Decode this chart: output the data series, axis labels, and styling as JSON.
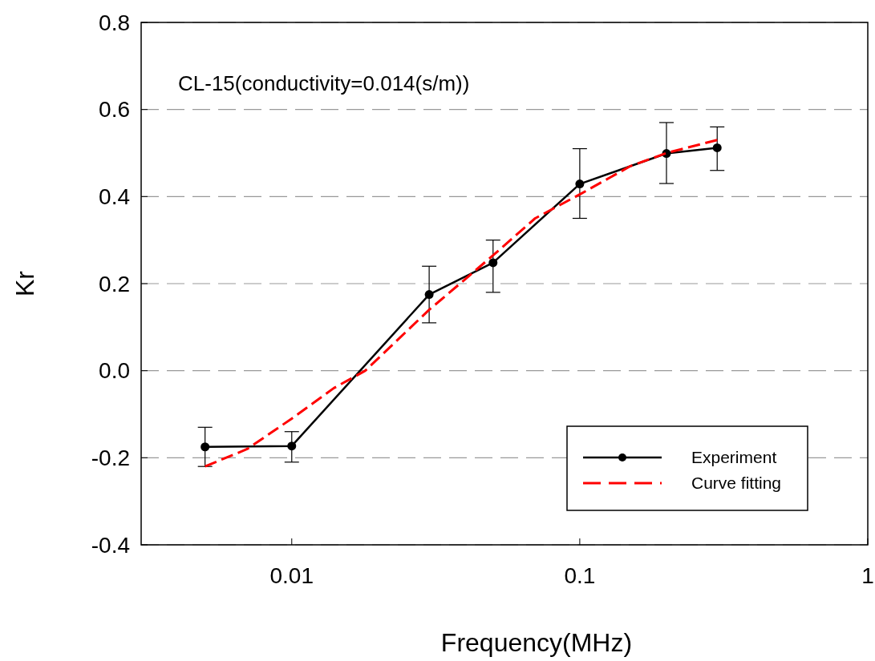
{
  "chart_data": {
    "type": "line",
    "xlabel": "Frequency(MHz)",
    "ylabel": "Kr",
    "annotations": [
      "CL-15(conductivity=0.014(s/m))"
    ],
    "log": "x",
    "xlim": [
      0.003,
      1
    ],
    "xticks": [
      0.01,
      0.1,
      1
    ],
    "ylim": [
      -0.4,
      0.8
    ],
    "yticks": [
      {
        "value": -0.4,
        "label": "-0.4"
      },
      {
        "value": -0.2,
        "label": "-0.2"
      },
      {
        "value": 0,
        "label": "0.0"
      },
      {
        "value": 0.2,
        "label": "0.2"
      },
      {
        "value": 0.4,
        "label": "0.4"
      },
      {
        "value": 0.6,
        "label": "0.6"
      },
      {
        "value": 0.8,
        "label": "0.8"
      }
    ],
    "grid": "y",
    "legend": "bottom right",
    "series": [
      {
        "name": "Experiment",
        "color": "#000000",
        "marker": "circle",
        "line_style": "solid",
        "x": [
          0.005,
          0.01,
          0.03,
          0.05,
          0.1,
          0.2,
          0.3
        ],
        "values": [
          -0.175,
          -0.173,
          0.175,
          0.248,
          0.429,
          0.499,
          0.512
        ],
        "errors": [
          [
            -0.22,
            -0.13
          ],
          [
            -0.21,
            -0.14
          ],
          [
            0.11,
            0.24
          ],
          [
            0.18,
            0.3
          ],
          [
            0.35,
            0.51
          ],
          [
            0.43,
            0.57
          ],
          [
            0.46,
            0.56
          ]
        ]
      },
      {
        "name": "Curve fitting",
        "color": "#ff0000",
        "marker": "none",
        "line_style": "dashed",
        "x": [
          0.005,
          0.007,
          0.01,
          0.014,
          0.018,
          0.025,
          0.03,
          0.04,
          0.05,
          0.07,
          0.1,
          0.15,
          0.2,
          0.3
        ],
        "values": [
          -0.22,
          -0.18,
          -0.11,
          -0.04,
          0.0,
          0.09,
          0.14,
          0.21,
          0.265,
          0.35,
          0.405,
          0.47,
          0.5,
          0.53
        ]
      }
    ]
  }
}
